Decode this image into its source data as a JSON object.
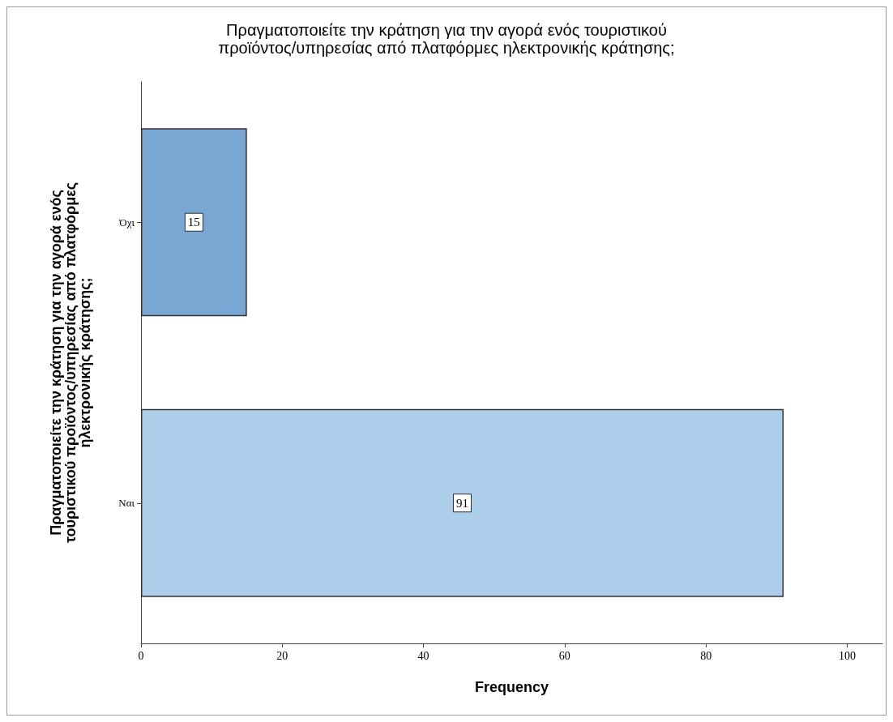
{
  "chart_data": {
    "type": "bar",
    "orientation": "horizontal",
    "title": "Πραγματοποιείτε την κράτηση για την αγορά ενός τουριστικού\nπροϊόντος/υπηρεσίας από πλατφόρμες ηλεκτρονικής κράτησης;",
    "xlabel": "Frequency",
    "ylabel": "Πραγματοποιείτε την κράτηση για την αγορά ενός\nτουριστικού προϊόντος/υπηρεσίας από πλατφόρμες\nηλεκτρονικής κράτησης;",
    "categories": [
      "Όχι",
      "Ναι"
    ],
    "values": [
      15,
      91
    ],
    "colors": [
      "#79a7d4",
      "#aecfec"
    ],
    "xlim": [
      0,
      105
    ],
    "xticks": [
      0,
      20,
      40,
      60,
      80,
      100
    ],
    "data_labels": true,
    "grid": false
  }
}
